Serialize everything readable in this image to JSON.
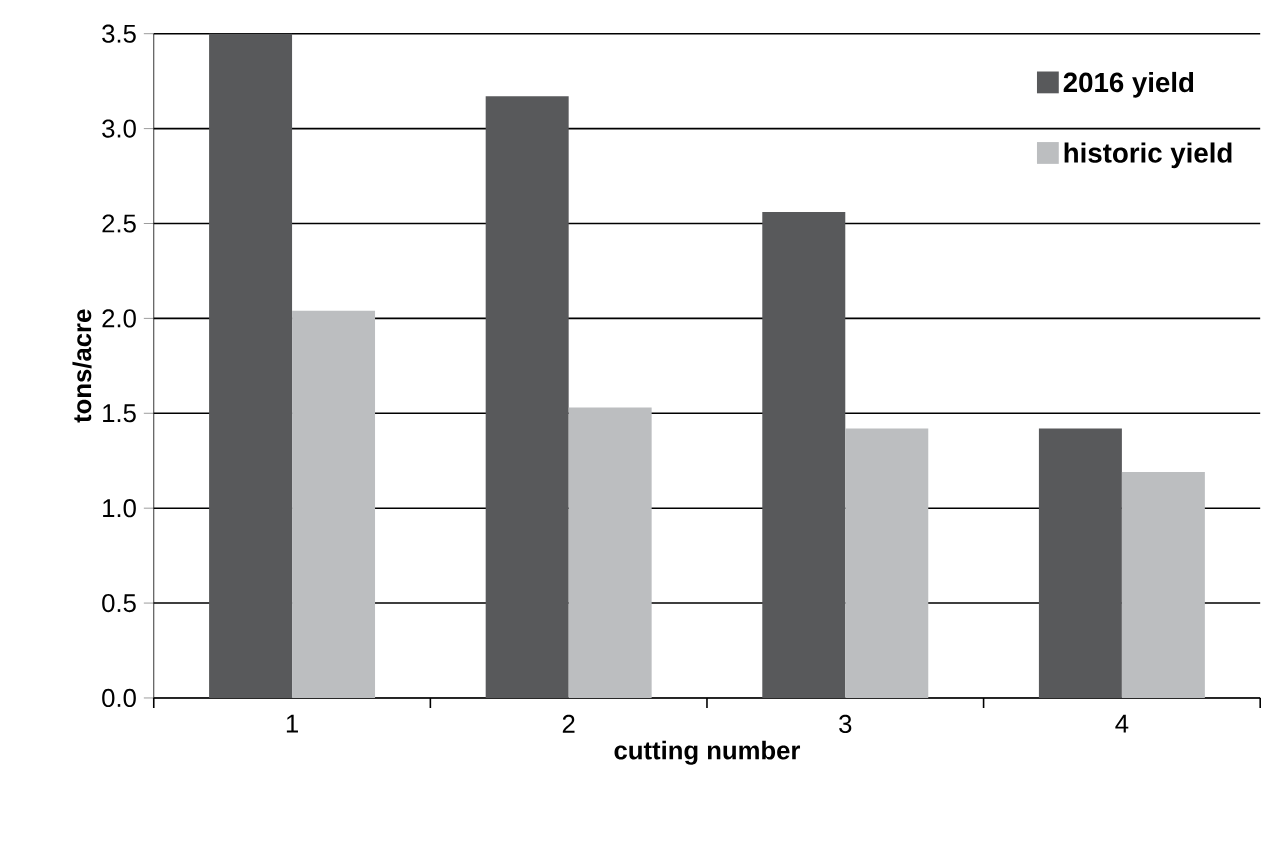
{
  "chart_data": {
    "type": "bar",
    "xlabel": "cutting number",
    "ylabel": "tons/acre",
    "categories": [
      "1",
      "2",
      "3",
      "4"
    ],
    "series": [
      {
        "name": "2016 yield",
        "color": "#58595b",
        "values": [
          3.5,
          3.17,
          2.56,
          1.42
        ]
      },
      {
        "name": "historic yield",
        "color": "#bcbec0",
        "values": [
          2.04,
          1.53,
          1.42,
          1.19
        ]
      }
    ],
    "ylim": [
      0,
      3.5
    ],
    "yticks": [
      {
        "value": 0,
        "label": "0.0"
      },
      {
        "value": 0.5,
        "label": "0.5"
      },
      {
        "value": 1,
        "label": "1.0"
      },
      {
        "value": 1.5,
        "label": "1.5"
      },
      {
        "value": 2,
        "label": "2.0"
      },
      {
        "value": 2.5,
        "label": "2.5"
      },
      {
        "value": 3,
        "label": "3.0"
      },
      {
        "value": 3.5,
        "label": "3.5"
      }
    ],
    "grid": "y",
    "legend": "top right"
  }
}
